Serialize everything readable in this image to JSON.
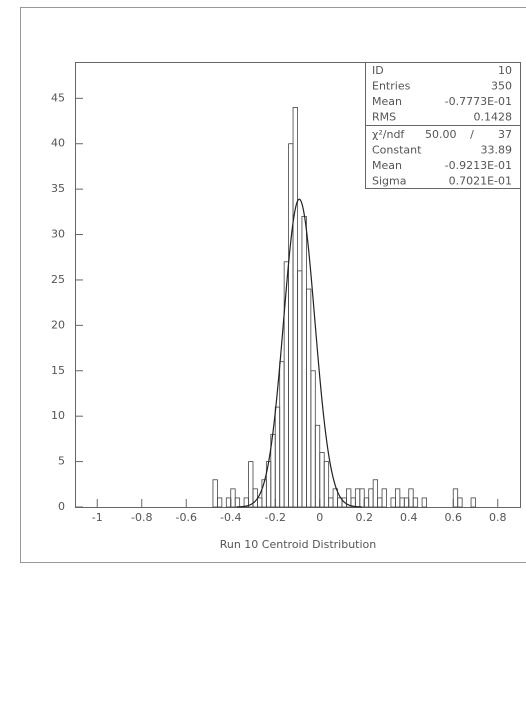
{
  "chart_data": {
    "type": "histogram",
    "xlabel": "Run 10 Centroid Distribution",
    "bins": [
      -1.1,
      -1.08,
      -1.06,
      -1.04,
      -1.02,
      -1,
      -0.98,
      -0.96,
      -0.94,
      -0.92,
      -0.9,
      -0.88,
      -0.86,
      -0.84,
      -0.82,
      -0.8,
      -0.78,
      -0.76,
      -0.74,
      -0.72,
      -0.7,
      -0.68,
      -0.66,
      -0.64,
      -0.62,
      -0.6,
      -0.58,
      -0.56,
      -0.54,
      -0.52,
      -0.5,
      -0.48,
      -0.46,
      -0.44,
      -0.42,
      -0.4,
      -0.38,
      -0.36,
      -0.34,
      -0.32,
      -0.3,
      -0.28,
      -0.26,
      -0.24,
      -0.22,
      -0.2,
      -0.18,
      -0.16,
      -0.14,
      -0.12,
      -0.1,
      -0.08,
      -0.06,
      -0.04,
      -0.02,
      0,
      0.02,
      0.04,
      0.06,
      0.08,
      0.1,
      0.12,
      0.14,
      0.16,
      0.18,
      0.2,
      0.22,
      0.24,
      0.26,
      0.28,
      0.3,
      0.32,
      0.34,
      0.36,
      0.38,
      0.4,
      0.42,
      0.44,
      0.46,
      0.48,
      0.5,
      0.52,
      0.54,
      0.56,
      0.58,
      0.6,
      0.62,
      0.64,
      0.66,
      0.68,
      0.7,
      0.72,
      0.74,
      0.76,
      0.78,
      0.8,
      0.82,
      0.84,
      0.86,
      0.88,
      0.9
    ],
    "counts": [
      0,
      0,
      0,
      0,
      0,
      0,
      0,
      0,
      0,
      0,
      0,
      0,
      0,
      0,
      0,
      0,
      0,
      0,
      0,
      0,
      0,
      0,
      0,
      0,
      0,
      0,
      0,
      0,
      0,
      0,
      0,
      3,
      1,
      0,
      1,
      2,
      1,
      0,
      1,
      5,
      2,
      1,
      3,
      5,
      8,
      11,
      16,
      27,
      40,
      44,
      26,
      32,
      24,
      15,
      9,
      6,
      5,
      1,
      2,
      1,
      1,
      2,
      1,
      2,
      2,
      1,
      2,
      3,
      1,
      2,
      0,
      1,
      2,
      1,
      1,
      2,
      1,
      0,
      1,
      0,
      0,
      0,
      0,
      0,
      0,
      2,
      1,
      0,
      0,
      1,
      0,
      0,
      0,
      0,
      0,
      0,
      0,
      0,
      0,
      0
    ],
    "color": "#444444",
    "xlim": [
      -1.1,
      0.9
    ],
    "ylim": [
      0,
      49
    ],
    "xticks": [
      -1,
      -0.8,
      -0.6,
      -0.4,
      -0.2,
      0,
      0.2,
      0.4,
      0.6,
      0.8
    ],
    "yticks": [
      0,
      5,
      10,
      15,
      20,
      25,
      30,
      35,
      40,
      45
    ],
    "stats": [
      {
        "label": "ID",
        "value": 10
      },
      {
        "label": "Entries",
        "value": 350
      },
      {
        "label": "Mean",
        "value": {
          "value": -0.07773,
          "label": "-0.7773E-01"
        }
      },
      {
        "label": "RMS",
        "value": 0.1428
      }
    ],
    "fit": {
      "chi2_label": "χ²/ndf",
      "chi2": {
        "value": 50,
        "label": "50.00"
      },
      "separator": "/",
      "ndf": 37,
      "params": [
        {
          "label": "Constant",
          "value": 33.89
        },
        {
          "label": "Mean",
          "value": {
            "value": -0.09213,
            "label": "-0.9213E-01"
          }
        },
        {
          "label": "Sigma",
          "value": {
            "value": 0.07021,
            "label": "0.7021E-01"
          }
        }
      ]
    }
  }
}
